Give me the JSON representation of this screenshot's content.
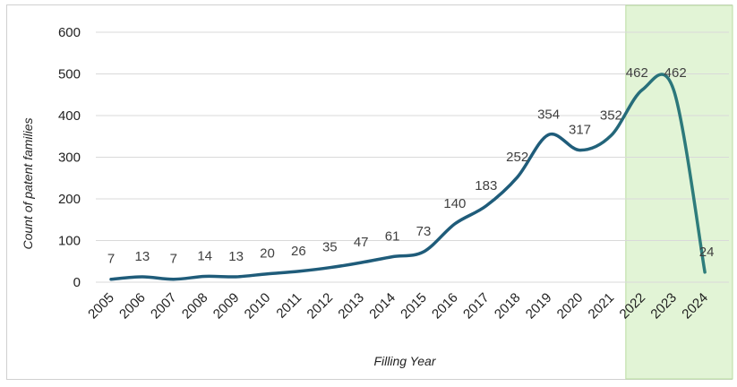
{
  "chart_data": {
    "type": "line",
    "title": "",
    "xlabel": "Filling Year",
    "ylabel": "Count  of patent families",
    "ylim": [
      0,
      600
    ],
    "yticks": [
      0,
      100,
      200,
      300,
      400,
      500,
      600
    ],
    "grid": true,
    "categories": [
      "2005",
      "2006",
      "2007",
      "2008",
      "2009",
      "2010",
      "2011",
      "2012",
      "2013",
      "2014",
      "2015",
      "2016",
      "2017",
      "2018",
      "2019",
      "2020",
      "2021",
      "2022",
      "2023",
      "2024"
    ],
    "series": [
      {
        "name": "Count of patent families",
        "values": [
          7,
          13,
          7,
          14,
          13,
          20,
          26,
          35,
          47,
          61,
          73,
          140,
          183,
          252,
          354,
          317,
          352,
          462,
          462,
          24
        ],
        "data_labels": [
          "7",
          "13",
          "7",
          "14",
          "13",
          "20",
          "26",
          "35",
          "47",
          "61",
          "73",
          "140",
          "183",
          "252",
          "354",
          "317",
          "352",
          "462",
          "462",
          "24"
        ]
      }
    ],
    "highlight_categories": [
      "2022",
      "2023",
      "2024"
    ],
    "colors": {
      "line_start": "#1f5c7a",
      "line_end": "#2e7d7b",
      "highlight_fill": "#e2f4d6",
      "highlight_border": "#b9dca0",
      "grid": "#d9d9d9"
    }
  }
}
